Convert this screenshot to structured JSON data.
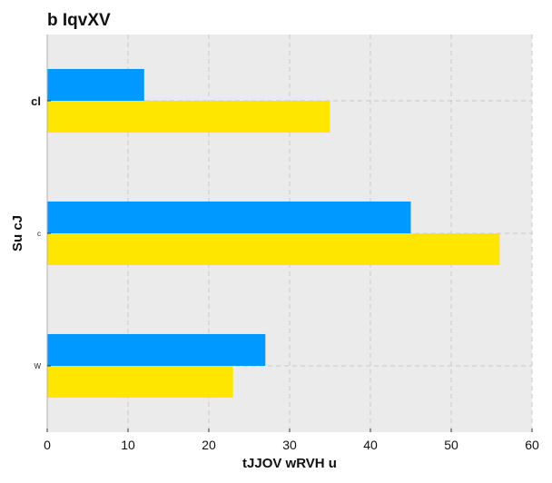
{
  "chart_data": {
    "type": "bar",
    "orientation": "horizontal",
    "title": "b IqvXV",
    "xlabel": "tJJOV wRVH u",
    "ylabel": "Su cJ",
    "categories": [
      "cl",
      "c",
      "W"
    ],
    "series": [
      {
        "values": [
          12,
          45,
          27
        ],
        "color": "#0099ff"
      },
      {
        "values": [
          35,
          56,
          23
        ],
        "color": "#ffe600"
      }
    ],
    "xlim": [
      0,
      60
    ],
    "xticks": [
      0,
      10,
      20,
      30,
      40,
      50,
      60
    ],
    "grid": true,
    "legend": false,
    "colors": {
      "plot_background": "#ebebeb",
      "grid": "#c8c8c8"
    }
  }
}
